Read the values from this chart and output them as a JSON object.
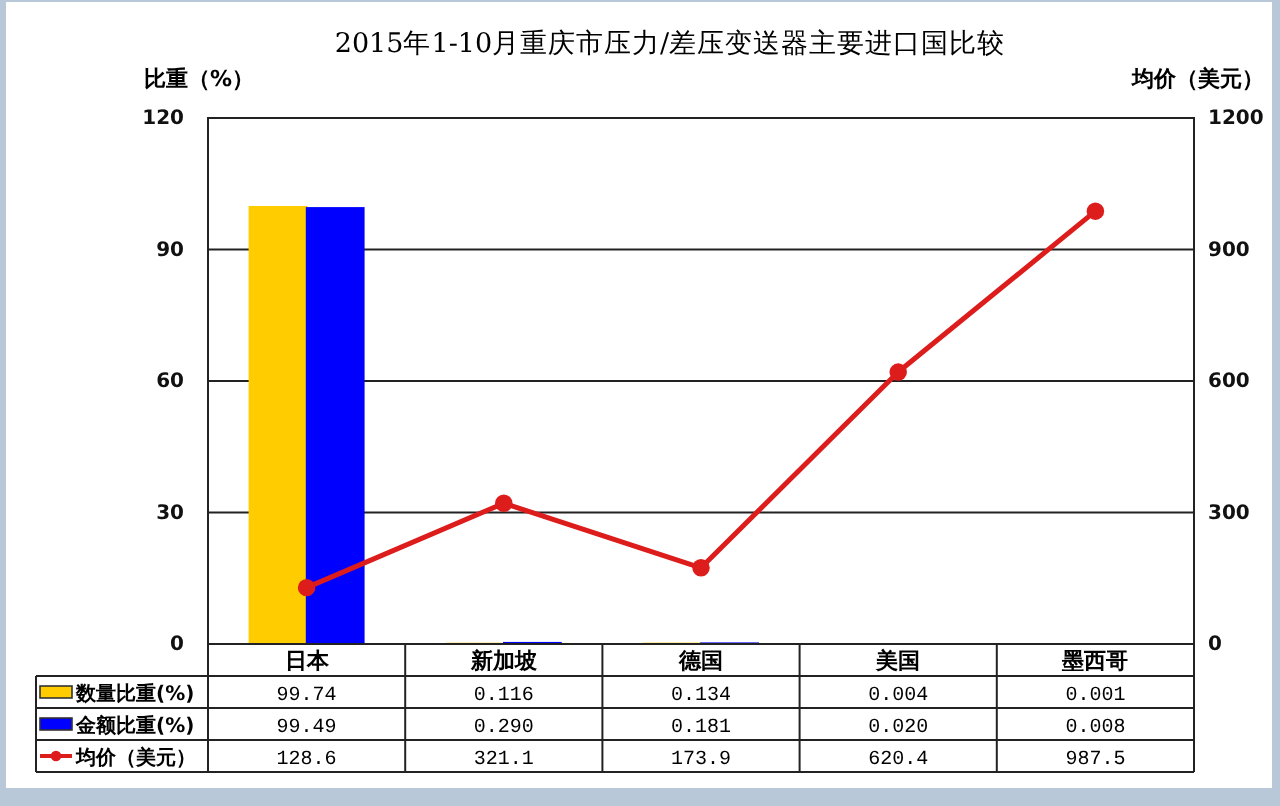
{
  "chart_data": {
    "type": "bar",
    "title": "2015年1-10月重庆市压力/差压变送器主要进口国比较",
    "ylabel": "比重（%）",
    "y2label": "均价（美元）",
    "categories": [
      "日本",
      "新加坡",
      "德国",
      "美国",
      "墨西哥"
    ],
    "series": [
      {
        "name": "数量比重(%)",
        "color": "#ffcc00",
        "values": [
          99.74,
          0.116,
          0.134,
          0.004,
          0.001
        ],
        "value_labels": [
          "99.74",
          "0.116",
          "0.134",
          "0.004",
          "0.001"
        ]
      },
      {
        "name": "金额比重(%)",
        "color": "#0000ff",
        "values": [
          99.49,
          0.29,
          0.181,
          0.02,
          0.008
        ],
        "value_labels": [
          "99.49",
          "0.290",
          "0.181",
          "0.020",
          "0.008"
        ]
      },
      {
        "name": "均价（美元）",
        "type": "line",
        "axis": "y2",
        "color": "#dd1c1c",
        "values": [
          128.6,
          321.1,
          173.9,
          620.4,
          987.5
        ],
        "value_labels": [
          "128.6",
          "321.1",
          "173.9",
          "620.4",
          "987.5"
        ]
      }
    ],
    "ylim": [
      0,
      120
    ],
    "yticks": [
      0,
      30,
      60,
      90,
      120
    ],
    "y2lim": [
      0,
      1200
    ],
    "y2ticks": [
      0,
      300,
      600,
      900,
      1200
    ],
    "grid": "y",
    "legend": "bottom",
    "marker": "circle",
    "line_style": "solid"
  }
}
